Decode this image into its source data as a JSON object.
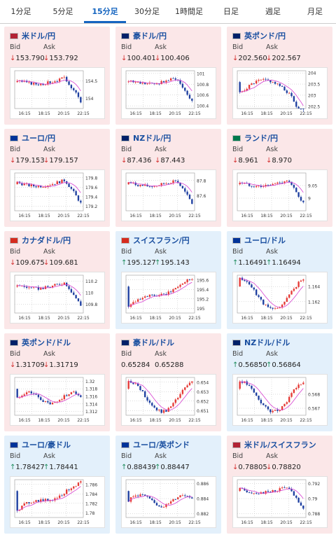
{
  "tabs": [
    {
      "label": "1分足",
      "active": false
    },
    {
      "label": "5分足",
      "active": false
    },
    {
      "label": "15分足",
      "active": true
    },
    {
      "label": "30分足",
      "active": false
    },
    {
      "label": "1時間足",
      "active": false
    },
    {
      "label": "日足",
      "active": false
    },
    {
      "label": "週足",
      "active": false
    },
    {
      "label": "月足",
      "active": false
    }
  ],
  "labels": {
    "bid": "Bid",
    "ask": "Ask"
  },
  "x_ticks": [
    "16:15",
    "18:15",
    "20:15",
    "22:15"
  ],
  "colors": {
    "down": "#d32f2f",
    "up": "#1b8a5a",
    "ma": "#d63fd0",
    "bull": "#e53935",
    "bear": "#1e3fa0"
  },
  "pairs": [
    {
      "title": "米ドル/円",
      "flag": "us-jp",
      "dir": "down",
      "bid": "153.790",
      "ask": "153.792",
      "yticks": [
        "154.5",
        "154"
      ],
      "ylim": [
        153.7,
        154.8
      ],
      "trend": "down"
    },
    {
      "title": "豪ドル/円",
      "flag": "au-jp",
      "dir": "down",
      "bid": "100.401",
      "ask": "100.406",
      "yticks": [
        "101",
        "100.8",
        "100.6",
        "100.4"
      ],
      "ylim": [
        100.35,
        101.05
      ],
      "trend": "down"
    },
    {
      "title": "英ポンド/円",
      "flag": "gb-jp",
      "dir": "down",
      "bid": "202.560",
      "ask": "202.567",
      "yticks": [
        "204",
        "203.5",
        "203",
        "202.5"
      ],
      "ylim": [
        202.4,
        204.1
      ],
      "trend": "hump"
    },
    {
      "title": "ユーロ/円",
      "flag": "eu-jp",
      "dir": "down",
      "bid": "179.153",
      "ask": "179.157",
      "yticks": [
        "179.8",
        "179.6",
        "179.4",
        "179.2"
      ],
      "ylim": [
        179.1,
        179.9
      ],
      "trend": "down"
    },
    {
      "title": "NZドル/円",
      "flag": "nz-jp",
      "dir": "down",
      "bid": "87.436",
      "ask": "87.443",
      "yticks": [
        "87.8",
        "87.6"
      ],
      "ylim": [
        87.4,
        87.9
      ],
      "trend": "down"
    },
    {
      "title": "ランド/円",
      "flag": "za-jp",
      "dir": "down",
      "bid": "8.961",
      "ask": "8.970",
      "yticks": [
        "9.05",
        "9"
      ],
      "ylim": [
        8.95,
        9.1
      ],
      "trend": "down"
    },
    {
      "title": "カナダドル/円",
      "flag": "ca-jp",
      "dir": "down",
      "bid": "109.675",
      "ask": "109.681",
      "yticks": [
        "110.2",
        "110",
        "109.8"
      ],
      "ylim": [
        109.65,
        110.3
      ],
      "trend": "down"
    },
    {
      "title": "スイスフラン/円",
      "flag": "ch-jp",
      "dir": "up",
      "bid": "195.127",
      "ask": "195.143",
      "yticks": [
        "195.6",
        "195.4",
        "195.2",
        "195"
      ],
      "ylim": [
        194.9,
        195.7
      ],
      "trend": "up"
    },
    {
      "title": "ユーロ/ドル",
      "flag": "eu-us",
      "dir": "up",
      "bid": "1.16491",
      "ask": "1.16494",
      "yticks": [
        "1.164",
        "1.162"
      ],
      "ylim": [
        1.1605,
        1.1655
      ],
      "trend": "dip"
    },
    {
      "title": "英ポンド/ドル",
      "flag": "gb-us",
      "dir": "down",
      "bid": "1.31709",
      "ask": "1.31719",
      "yticks": [
        "1.32",
        "1.318",
        "1.316",
        "1.314",
        "1.312"
      ],
      "ylim": [
        1.311,
        1.321
      ],
      "trend": "flat"
    },
    {
      "title": "豪ドル/ドル",
      "flag": "au-us",
      "dir": "neutral",
      "bid": "0.65284",
      "ask": "0.65288",
      "yticks": [
        "0.654",
        "0.653",
        "0.652",
        "0.651"
      ],
      "ylim": [
        0.6505,
        0.6545
      ],
      "trend": "dip"
    },
    {
      "title": "NZドル/ドル",
      "flag": "nz-us",
      "dir": "up",
      "bid": "0.56850",
      "ask": "0.56864",
      "yticks": [
        "0.568",
        "0.567"
      ],
      "ylim": [
        0.5665,
        0.5692
      ],
      "trend": "dip"
    },
    {
      "title": "ユーロ/豪ドル",
      "flag": "eu-au",
      "dir": "up",
      "bid": "1.78427",
      "ask": "1.78441",
      "yticks": [
        "1.786",
        "1.784",
        "1.782",
        "1.78"
      ],
      "ylim": [
        1.779,
        1.787
      ],
      "trend": "up"
    },
    {
      "title": "ユーロ/英ポンド",
      "flag": "eu-gb",
      "dir": "up",
      "bid": "0.88439",
      "ask": "0.88447",
      "yticks": [
        "0.886",
        "0.884",
        "0.882"
      ],
      "ylim": [
        0.8815,
        0.8865
      ],
      "trend": "flat"
    },
    {
      "title": "米ドル/スイスフラン",
      "flag": "us-ch",
      "dir": "down",
      "bid": "0.78805",
      "ask": "0.78820",
      "yticks": [
        "0.792",
        "0.79",
        "0.788"
      ],
      "ylim": [
        0.7875,
        0.7925
      ],
      "trend": "down"
    }
  ]
}
